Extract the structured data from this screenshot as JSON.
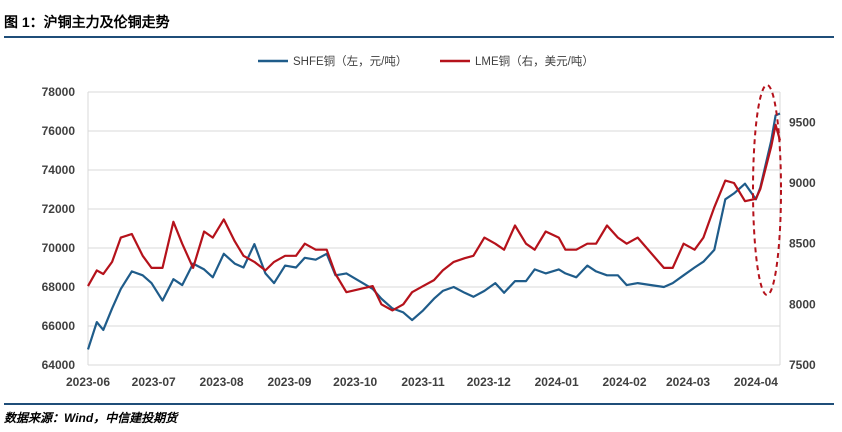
{
  "figure": {
    "title": "图 1：沪铜主力及伦铜走势",
    "source": "数据来源：Wind，中信建投期货"
  },
  "chart_data": {
    "type": "line",
    "x_labels": [
      "2023-06",
      "2023-07",
      "2023-08",
      "2023-09",
      "2023-10",
      "2023-11",
      "2023-12",
      "2024-01",
      "2024-02",
      "2024-03",
      "2024-04"
    ],
    "xlim": [
      "2023-06-01",
      "2024-04-12"
    ],
    "y_left": {
      "range": [
        64000,
        78000
      ],
      "ticks": [
        "64000",
        "66000",
        "68000",
        "70000",
        "72000",
        "74000",
        "76000",
        "78000"
      ]
    },
    "y_right": {
      "range": [
        7500,
        9750
      ],
      "ticks": [
        "7500",
        "8000",
        "8500",
        "9000",
        "9500"
      ]
    },
    "grid": "horizontal",
    "legend_position": "top",
    "annotation": "red dashed ellipse highlighting the final April 2024 rally",
    "series": [
      {
        "name": "SHFE铜（左，元/吨）",
        "axis": "left",
        "color": "#1f5c8a",
        "x": [
          "2023-06-01",
          "2023-06-05",
          "2023-06-08",
          "2023-06-12",
          "2023-06-16",
          "2023-06-21",
          "2023-06-26",
          "2023-06-30",
          "2023-07-05",
          "2023-07-10",
          "2023-07-14",
          "2023-07-19",
          "2023-07-24",
          "2023-07-28",
          "2023-08-02",
          "2023-08-07",
          "2023-08-11",
          "2023-08-16",
          "2023-08-21",
          "2023-08-25",
          "2023-08-30",
          "2023-09-04",
          "2023-09-08",
          "2023-09-13",
          "2023-09-18",
          "2023-09-22",
          "2023-09-27",
          "2023-10-09",
          "2023-10-13",
          "2023-10-18",
          "2023-10-23",
          "2023-10-27",
          "2023-11-01",
          "2023-11-06",
          "2023-11-10",
          "2023-11-15",
          "2023-11-20",
          "2023-11-24",
          "2023-11-29",
          "2023-12-04",
          "2023-12-08",
          "2023-12-13",
          "2023-12-18",
          "2023-12-22",
          "2023-12-27",
          "2024-01-02",
          "2024-01-05",
          "2024-01-10",
          "2024-01-15",
          "2024-01-19",
          "2024-01-24",
          "2024-01-29",
          "2024-02-02",
          "2024-02-07",
          "2024-02-19",
          "2024-02-23",
          "2024-02-28",
          "2024-03-04",
          "2024-03-08",
          "2024-03-13",
          "2024-03-18",
          "2024-03-22",
          "2024-03-27",
          "2024-04-01",
          "2024-04-03",
          "2024-04-08",
          "2024-04-10",
          "2024-04-12"
        ],
        "values": [
          64800,
          66200,
          65800,
          66900,
          67900,
          68800,
          68600,
          68200,
          67300,
          68400,
          68100,
          69200,
          68900,
          68500,
          69700,
          69200,
          69000,
          70200,
          68700,
          68200,
          69100,
          69000,
          69500,
          69400,
          69700,
          68600,
          68700,
          67900,
          67400,
          66900,
          66700,
          66300,
          66800,
          67400,
          67800,
          68000,
          67700,
          67500,
          67800,
          68200,
          67700,
          68300,
          68300,
          68900,
          68700,
          68900,
          68700,
          68500,
          69100,
          68800,
          68600,
          68600,
          68100,
          68200,
          68000,
          68200,
          68600,
          69000,
          69300,
          69900,
          72500,
          72800,
          73300,
          72500,
          73100,
          75500,
          76800,
          76900
        ]
      },
      {
        "name": "LME铜（右，美元/吨）",
        "axis": "right",
        "color": "#b5121b",
        "x": [
          "2023-06-01",
          "2023-06-05",
          "2023-06-08",
          "2023-06-12",
          "2023-06-16",
          "2023-06-21",
          "2023-06-26",
          "2023-06-30",
          "2023-07-05",
          "2023-07-10",
          "2023-07-14",
          "2023-07-19",
          "2023-07-24",
          "2023-07-28",
          "2023-08-02",
          "2023-08-07",
          "2023-08-11",
          "2023-08-16",
          "2023-08-21",
          "2023-08-25",
          "2023-08-30",
          "2023-09-04",
          "2023-09-08",
          "2023-09-13",
          "2023-09-18",
          "2023-09-22",
          "2023-09-27",
          "2023-10-09",
          "2023-10-13",
          "2023-10-18",
          "2023-10-23",
          "2023-10-27",
          "2023-11-01",
          "2023-11-06",
          "2023-11-10",
          "2023-11-15",
          "2023-11-20",
          "2023-11-24",
          "2023-11-29",
          "2023-12-04",
          "2023-12-08",
          "2023-12-13",
          "2023-12-18",
          "2023-12-22",
          "2023-12-27",
          "2024-01-02",
          "2024-01-05",
          "2024-01-10",
          "2024-01-15",
          "2024-01-19",
          "2024-01-24",
          "2024-01-29",
          "2024-02-02",
          "2024-02-07",
          "2024-02-19",
          "2024-02-23",
          "2024-02-28",
          "2024-03-04",
          "2024-03-08",
          "2024-03-13",
          "2024-03-18",
          "2024-03-22",
          "2024-03-27",
          "2024-04-01",
          "2024-04-03",
          "2024-04-08",
          "2024-04-10",
          "2024-04-12"
        ],
        "values": [
          8150,
          8280,
          8250,
          8350,
          8550,
          8580,
          8400,
          8300,
          8300,
          8680,
          8500,
          8300,
          8600,
          8550,
          8700,
          8520,
          8400,
          8350,
          8280,
          8350,
          8400,
          8400,
          8500,
          8450,
          8450,
          8250,
          8100,
          8150,
          8000,
          7950,
          8000,
          8100,
          8150,
          8200,
          8280,
          8350,
          8380,
          8400,
          8550,
          8500,
          8450,
          8650,
          8500,
          8450,
          8600,
          8550,
          8450,
          8450,
          8500,
          8500,
          8650,
          8550,
          8500,
          8550,
          8300,
          8300,
          8500,
          8450,
          8550,
          8800,
          9020,
          9000,
          8850,
          8870,
          8950,
          9300,
          9480,
          9350
        ]
      }
    ]
  }
}
